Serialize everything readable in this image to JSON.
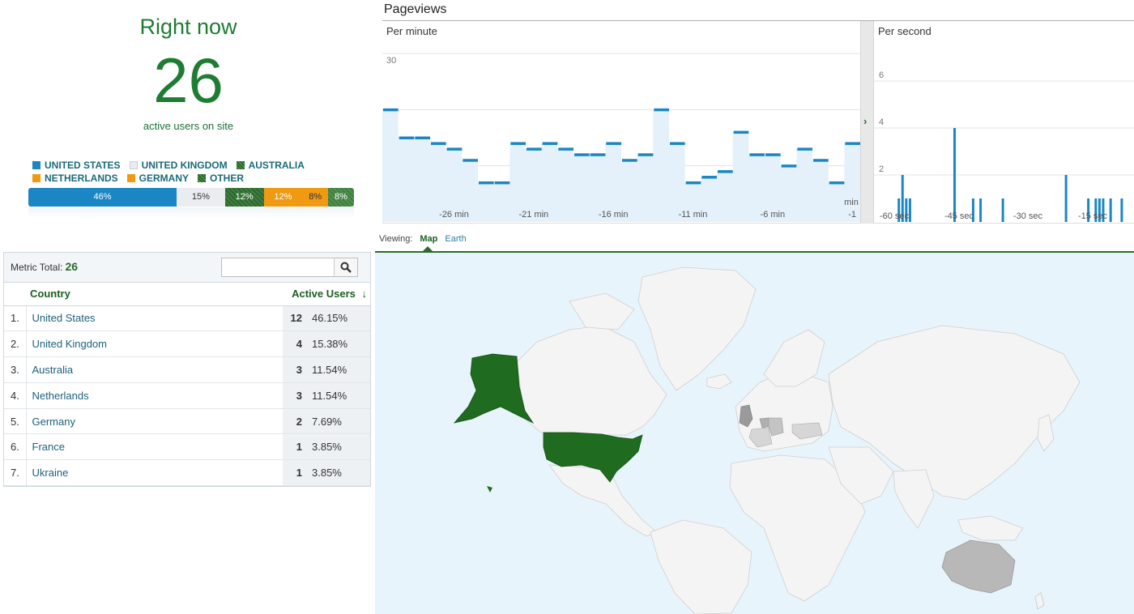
{
  "rightnow": {
    "title": "Right now",
    "count": "26",
    "subtitle": "active users on site",
    "legend": [
      {
        "label": "UNITED STATES",
        "color": "#1a87c4",
        "pattern": "solid"
      },
      {
        "label": "UNITED KINGDOM",
        "color": "#e9edf0",
        "pattern": "solid"
      },
      {
        "label": "AUSTRALIA",
        "color": "#2a6a2a",
        "pattern": "dots"
      },
      {
        "label": "NETHERLANDS",
        "color": "#ef9a12",
        "pattern": "solid"
      },
      {
        "label": "GERMANY",
        "color": "#ef9a12",
        "pattern": "solid"
      },
      {
        "label": "OTHER",
        "color": "#2a6a2a",
        "pattern": "dots"
      }
    ],
    "bar": [
      {
        "label": "46%",
        "value": 46,
        "color": "#1a87c4",
        "text_color": "#ffffff"
      },
      {
        "label": "15%",
        "value": 15,
        "color": "#e9edf0",
        "text_color": "#333333"
      },
      {
        "label": "12%",
        "value": 12,
        "color": "#2a6a2a",
        "text_color": "#ffffff"
      },
      {
        "label": "12%",
        "value": 12,
        "color": "#ef9a12",
        "text_color": "#ffffff"
      },
      {
        "label": "8%",
        "value": 8,
        "color": "#ef9a12",
        "text_color": "#333333"
      },
      {
        "label": "8%",
        "value": 8,
        "color": "#3c7f3c",
        "text_color": "#ffffff"
      }
    ]
  },
  "pageviews": {
    "title": "Pageviews",
    "per_minute_label": "Per minute",
    "per_second_label": "Per second",
    "color": "#1a87c4"
  },
  "chart_data": [
    {
      "type": "area",
      "title": "Per minute",
      "x": [
        -30,
        -29,
        -28,
        -27,
        -26,
        -25,
        -24,
        -23,
        -22,
        -21,
        -20,
        -19,
        -18,
        -17,
        -16,
        -15,
        -14,
        -13,
        -12,
        -11,
        -10,
        -9,
        -8,
        -7,
        -6,
        -5,
        -4,
        -3,
        -2,
        -1
      ],
      "x_tick_labels": [
        "-26 min",
        "-21 min",
        "-16 min",
        "-11 min",
        "-6 min",
        "-1"
      ],
      "x_unit_label": "min",
      "values": [
        20,
        15,
        15,
        14,
        13,
        11,
        7,
        7,
        14,
        13,
        14,
        13,
        12,
        12,
        14,
        11,
        12,
        20,
        14,
        7,
        8,
        9,
        16,
        12,
        12,
        10,
        13,
        11,
        7,
        14
      ],
      "ylim": [
        0,
        30
      ],
      "y_ticks": [
        10,
        20,
        30
      ],
      "grid": true
    },
    {
      "type": "bar",
      "title": "Per second",
      "x_tick_labels": [
        "-60 sec",
        "-45 sec",
        "-30 sec",
        "-15 sec"
      ],
      "values": [
        0,
        0,
        1,
        2,
        1,
        1,
        0,
        0,
        0,
        0,
        0,
        0,
        0,
        0,
        0,
        0,
        0,
        4,
        0,
        0,
        0,
        0,
        1,
        0,
        1,
        0,
        0,
        0,
        0,
        0,
        1,
        0,
        0,
        0,
        0,
        0,
        0,
        0,
        0,
        0,
        0,
        0,
        0,
        0,
        0,
        0,
        0,
        2,
        0,
        0,
        0,
        0,
        0,
        1,
        0,
        1,
        1,
        1,
        0,
        1,
        0,
        0,
        1
      ],
      "ylim": [
        0,
        6
      ],
      "y_ticks": [
        2,
        4,
        6
      ],
      "grid": true
    }
  ],
  "table": {
    "metric_total_label": "Metric Total:",
    "metric_total_value": "26",
    "search_placeholder": "",
    "col_country": "Country",
    "col_active": "Active Users",
    "rows": [
      {
        "idx": "1.",
        "country": "United States",
        "users": "12",
        "pct": "46.15%"
      },
      {
        "idx": "2.",
        "country": "United Kingdom",
        "users": "4",
        "pct": "15.38%"
      },
      {
        "idx": "3.",
        "country": "Australia",
        "users": "3",
        "pct": "11.54%"
      },
      {
        "idx": "4.",
        "country": "Netherlands",
        "users": "3",
        "pct": "11.54%"
      },
      {
        "idx": "5.",
        "country": "Germany",
        "users": "2",
        "pct": "7.69%"
      },
      {
        "idx": "6.",
        "country": "France",
        "users": "1",
        "pct": "3.85%"
      },
      {
        "idx": "7.",
        "country": "Ukraine",
        "users": "1",
        "pct": "3.85%"
      }
    ]
  },
  "map": {
    "viewing_label": "Viewing:",
    "tab_map": "Map",
    "tab_earth": "Earth",
    "ocean_color": "#e8f4fb",
    "land_color": "#f4f4f4",
    "highlight_color": "#1f6b1f",
    "low_color": "#b8b8b8"
  }
}
